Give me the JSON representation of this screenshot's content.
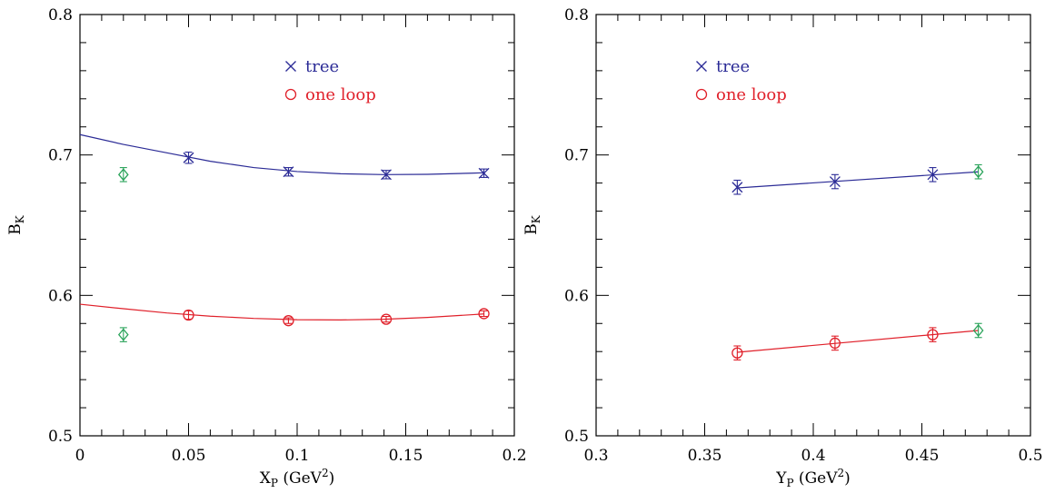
{
  "chart_data": [
    {
      "type": "scatter",
      "xlabel": "X",
      "xlabel_sub": "P",
      "xlabel_unit": "(GeV",
      "xlabel_sup": "2",
      "xlabel_close": ")",
      "ylabel": "B",
      "ylabel_sub": "K",
      "xlim": [
        0,
        0.2
      ],
      "ylim": [
        0.5,
        0.8
      ],
      "xticks": [
        "0",
        "0.05",
        "0.1",
        "0.15",
        "0.2"
      ],
      "yticks": [
        "0.5",
        "0.6",
        "0.7",
        "0.8"
      ],
      "legend": {
        "placement": "top-center",
        "entries": [
          "tree",
          "one loop"
        ]
      },
      "series": [
        {
          "name": "tree",
          "color": "#2b2b96",
          "marker": "cross",
          "x": [
            0.05,
            0.096,
            0.141,
            0.186
          ],
          "y": [
            0.698,
            0.688,
            0.686,
            0.687
          ],
          "err": [
            0.004,
            0.003,
            0.003,
            0.003
          ],
          "fit_x": [
            0.0,
            0.02,
            0.04,
            0.06,
            0.08,
            0.1,
            0.12,
            0.14,
            0.16,
            0.18,
            0.186
          ],
          "fit_y": [
            0.7145,
            0.7075,
            0.7015,
            0.6955,
            0.691,
            0.6882,
            0.6866,
            0.686,
            0.6862,
            0.687,
            0.6873
          ]
        },
        {
          "name": "one loop",
          "color": "#e0202a",
          "marker": "circle",
          "x": [
            0.05,
            0.096,
            0.141,
            0.186
          ],
          "y": [
            0.586,
            0.582,
            0.583,
            0.587
          ],
          "err": [
            0.003,
            0.002,
            0.002,
            0.002
          ],
          "fit_x": [
            0.0,
            0.02,
            0.04,
            0.06,
            0.08,
            0.1,
            0.12,
            0.14,
            0.16,
            0.18,
            0.186
          ],
          "fit_y": [
            0.5937,
            0.5905,
            0.5875,
            0.5852,
            0.5836,
            0.5827,
            0.5825,
            0.583,
            0.5843,
            0.5862,
            0.5868
          ]
        },
        {
          "name": "",
          "color": "#2aa35a",
          "marker": "diamond",
          "x": [
            0.02,
            0.02
          ],
          "y": [
            0.686,
            0.572
          ],
          "err": [
            0.005,
            0.005
          ]
        }
      ]
    },
    {
      "type": "scatter",
      "xlabel": "Y",
      "xlabel_sub": "P",
      "xlabel_unit": "(GeV",
      "xlabel_sup": "2",
      "xlabel_close": ")",
      "ylabel": "B",
      "ylabel_sub": "K",
      "xlim": [
        0.3,
        0.5
      ],
      "ylim": [
        0.5,
        0.8
      ],
      "xticks": [
        "0.3",
        "0.35",
        "0.4",
        "0.45",
        "0.5"
      ],
      "yticks": [
        "0.5",
        "0.6",
        "0.7",
        "0.8"
      ],
      "legend": {
        "placement": "top-left",
        "entries": [
          "tree",
          "one loop"
        ]
      },
      "series": [
        {
          "name": "tree",
          "color": "#2b2b96",
          "marker": "cross",
          "x": [
            0.365,
            0.41,
            0.455
          ],
          "y": [
            0.677,
            0.681,
            0.686
          ],
          "err": [
            0.005,
            0.005,
            0.005
          ],
          "fit_x": [
            0.365,
            0.476
          ],
          "fit_y": [
            0.6765,
            0.688
          ]
        },
        {
          "name": "one loop",
          "color": "#e0202a",
          "marker": "circle",
          "x": [
            0.365,
            0.41,
            0.455
          ],
          "y": [
            0.559,
            0.566,
            0.572
          ],
          "err": [
            0.005,
            0.005,
            0.005
          ],
          "fit_x": [
            0.365,
            0.476
          ],
          "fit_y": [
            0.5595,
            0.575
          ]
        },
        {
          "name": "",
          "color": "#2aa35a",
          "marker": "diamond",
          "x": [
            0.476,
            0.476
          ],
          "y": [
            0.688,
            0.575
          ],
          "err": [
            0.005,
            0.005
          ]
        }
      ]
    }
  ]
}
